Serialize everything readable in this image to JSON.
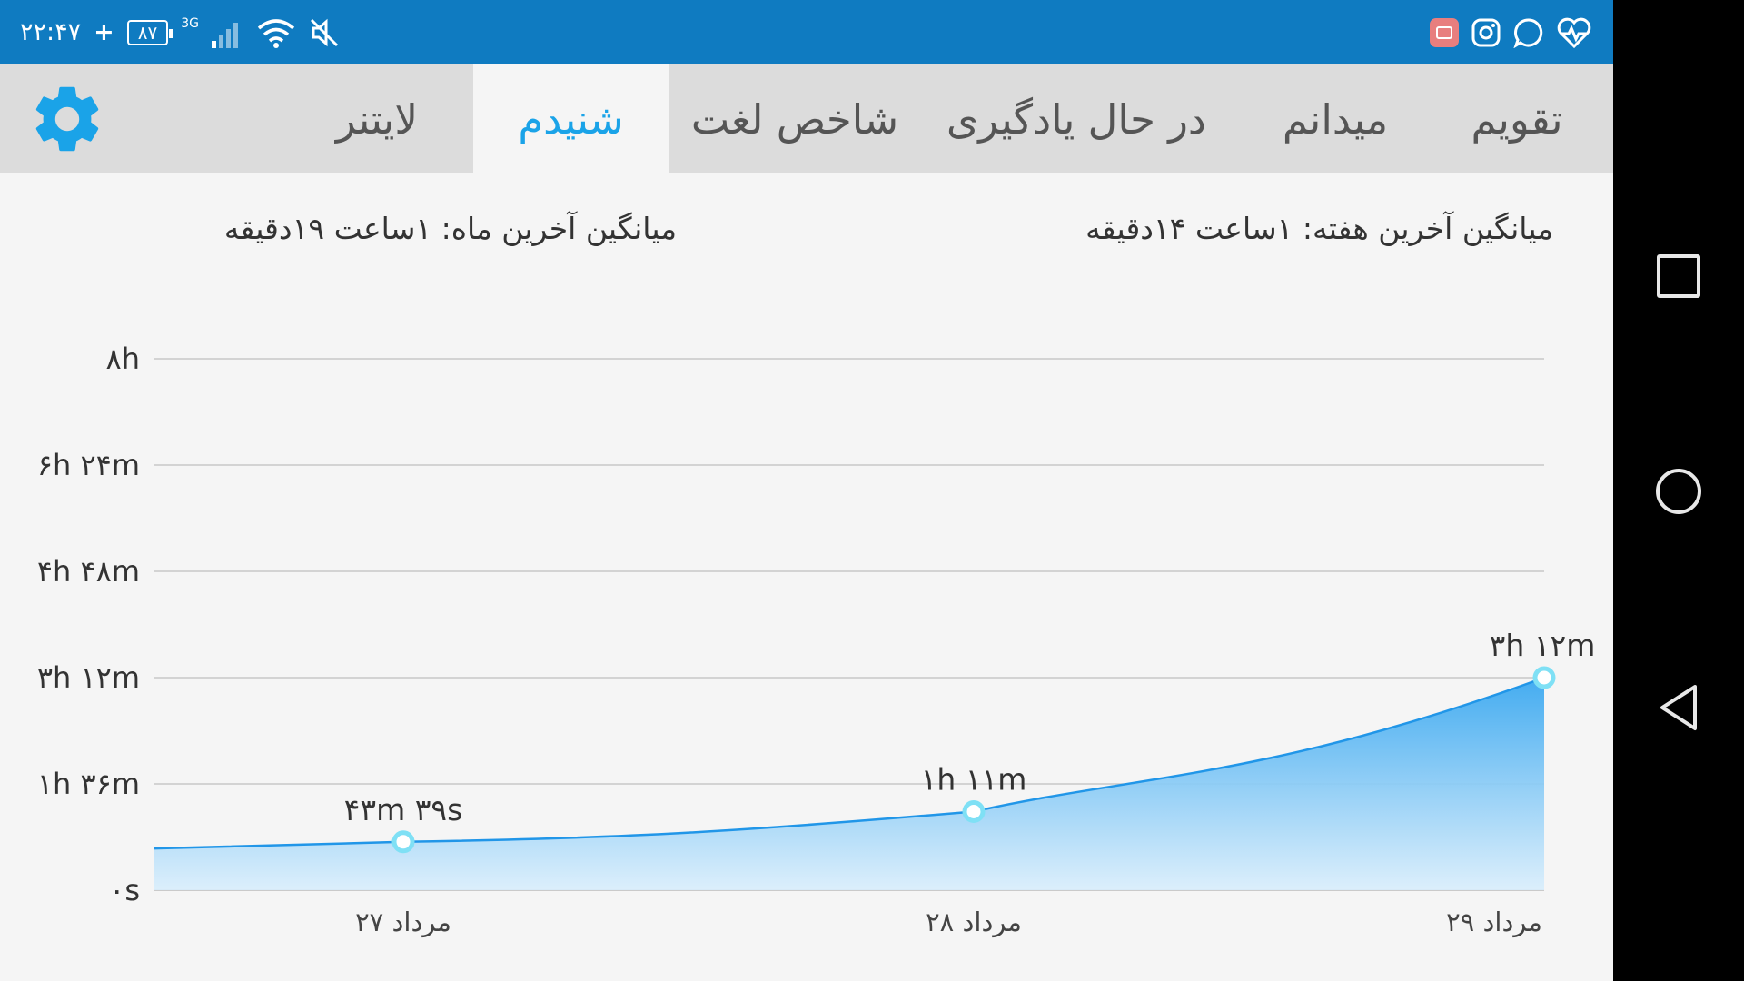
{
  "status_bar": {
    "time": "۲۲:۴۷",
    "plus": "+",
    "battery": "۸۷",
    "network": "3G",
    "icons": [
      "signal-icon",
      "wifi-icon",
      "mute-icon",
      "heart-rate-icon",
      "whatsapp-icon",
      "instagram-icon",
      "app-icon"
    ]
  },
  "tabs": [
    {
      "label": "تقویم",
      "active": false
    },
    {
      "label": "میدانم",
      "active": false
    },
    {
      "label": "در حال یادگیری",
      "active": false
    },
    {
      "label": "شاخص لغت",
      "active": false
    },
    {
      "label": "شنیدم",
      "active": true
    },
    {
      "label": "لایتنر",
      "active": false
    }
  ],
  "settings_icon": "gear-icon",
  "averages": {
    "week": "میانگین آخرین هفته: ۱ساعت   ۱۴دقیقه",
    "month": "میانگین آخرین ماه: ۱ساعت   ۱۹دقیقه"
  },
  "colors": {
    "status_bar": "#0f7bc1",
    "accent": "#1aa3e8",
    "line": "#2196e8",
    "point": "#7fe0f5"
  },
  "chart_data": {
    "type": "area",
    "y_ticks": [
      "۰s",
      "۱h ۳۶m",
      "۳h ۱۲m",
      "۴h ۴۸m",
      "۶h ۲۴m",
      "۸h"
    ],
    "ylim_minutes": [
      0,
      480
    ],
    "categories": [
      "۲۷ مرداد",
      "۲۸ مرداد",
      "۲۹ مرداد"
    ],
    "values_minutes": [
      43.65,
      71,
      192
    ],
    "data_labels": [
      "۴۳m ۳۹s",
      "۱h ۱۱m",
      "۳h ۱۲m"
    ],
    "grid": true
  },
  "nav": {
    "square": "recent-apps-icon",
    "circle": "home-icon",
    "back": "back-icon"
  }
}
